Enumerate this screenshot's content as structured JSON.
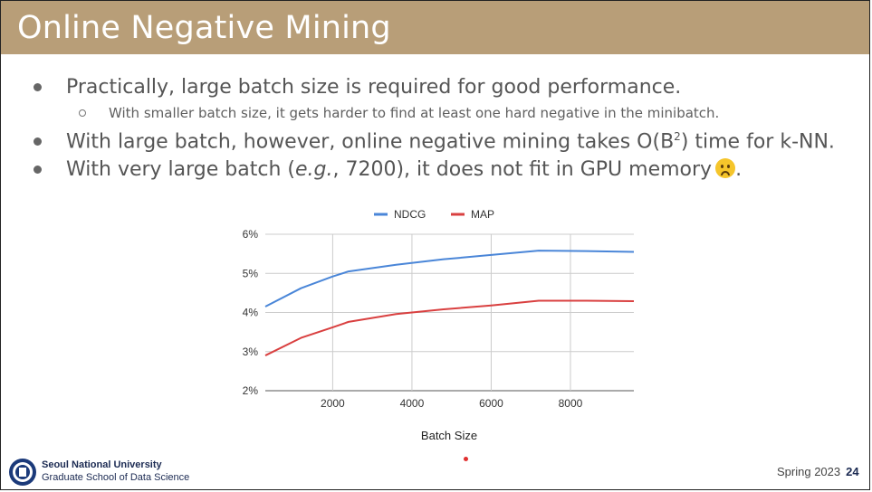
{
  "slide": {
    "title": "Online Negative Mining",
    "bullets": [
      "Practically, large batch size is required for good performance.",
      "With smaller batch size, it gets harder to find at least one hard negative in the minibatch.",
      "With large batch, however, online negative mining takes O(B",
      "2",
      ") time for k-NN.",
      "With very large batch (",
      "e.g.",
      ", 7200), it does not fit in GPU memory",
      "."
    ],
    "footer": {
      "org_name": "Seoul National University",
      "org_dept": "Graduate School of Data Science",
      "term": "Spring 2023",
      "page": "24"
    }
  },
  "colors": {
    "header": "#b89e78",
    "ndcg": "#4a86d8",
    "map": "#d94040"
  },
  "chart_data": {
    "type": "line",
    "title": "",
    "xlabel": "Batch Size",
    "ylabel": "",
    "x": [
      300,
      1200,
      2000,
      2400,
      3600,
      4800,
      6000,
      7200,
      8400,
      9600
    ],
    "series": [
      {
        "name": "NDCG",
        "values": [
          4.15,
          4.62,
          4.92,
          5.05,
          5.22,
          5.36,
          5.47,
          5.58,
          5.57,
          5.55
        ]
      },
      {
        "name": "MAP",
        "values": [
          2.9,
          3.35,
          3.62,
          3.76,
          3.96,
          4.08,
          4.18,
          4.3,
          4.3,
          4.29
        ]
      }
    ],
    "xlim": [
      300,
      9600
    ],
    "ylim": [
      2,
      6
    ],
    "xticks": [
      "2000",
      "4000",
      "6000",
      "8000"
    ],
    "yticks": [
      "2%",
      "3%",
      "4%",
      "5%",
      "6%"
    ],
    "legend": "top-center",
    "grid": true
  }
}
